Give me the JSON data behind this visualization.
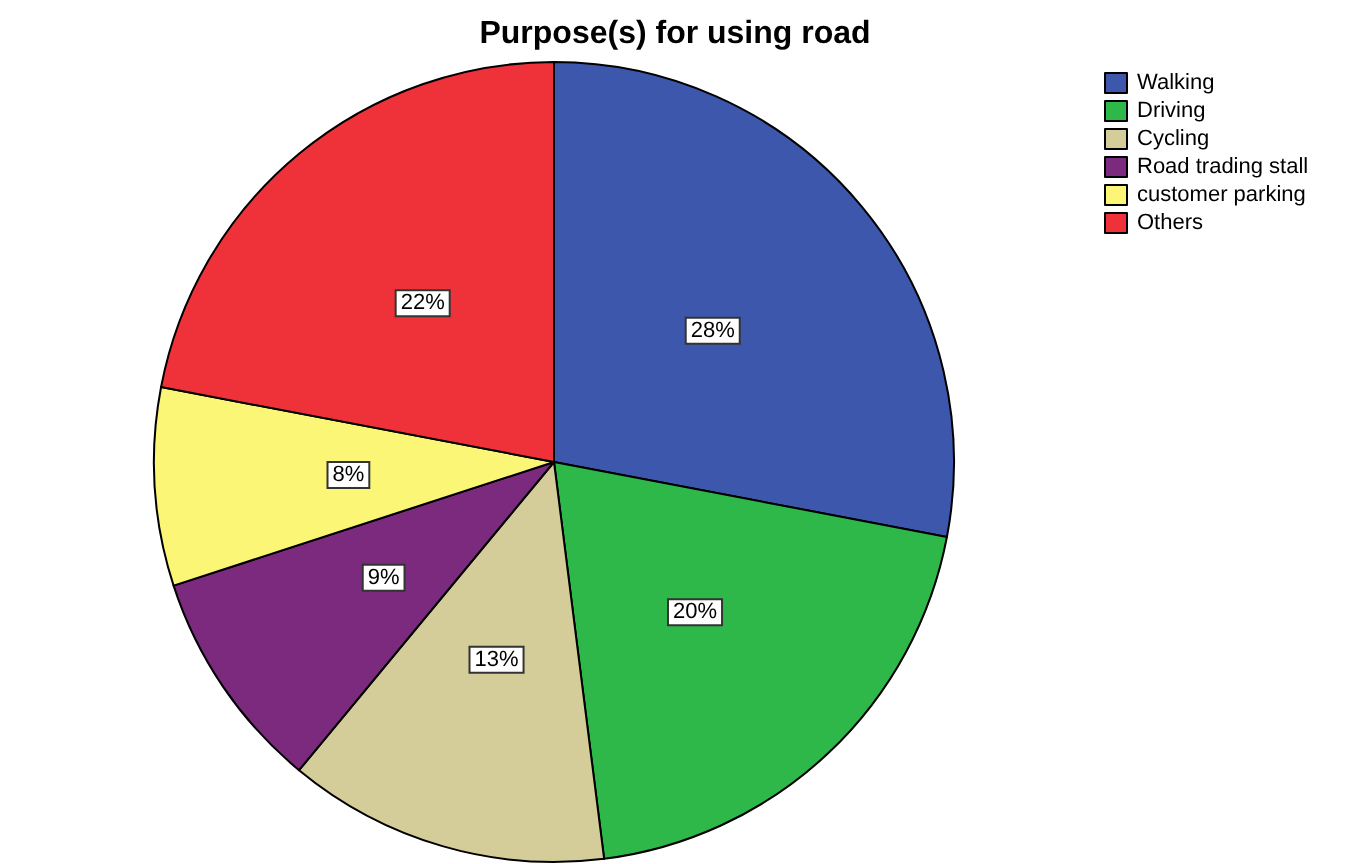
{
  "chart_data": {
    "type": "pie",
    "title": "Purpose(s) for using road",
    "categories": [
      "Walking",
      "Driving",
      "Cycling",
      "Road trading stall",
      "customer parking",
      "Others"
    ],
    "values": [
      28,
      20,
      13,
      9,
      8,
      22
    ],
    "value_labels": [
      "28%",
      "20%",
      "13%",
      "9%",
      "8%",
      "22%"
    ],
    "colors": [
      "#3d57ad",
      "#2fb84a",
      "#d4cc99",
      "#7b2a7d",
      "#fbf675",
      "#ef323a"
    ],
    "legend": "top right"
  }
}
